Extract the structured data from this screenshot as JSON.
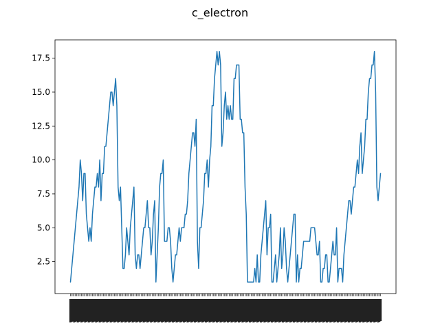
{
  "chart_data": {
    "type": "line",
    "title": "c_electron",
    "xlabel": "",
    "ylabel": "",
    "ylim": [
      0.15,
      18.85
    ],
    "yticks": [
      "2.5",
      "5.0",
      "7.5",
      "10.0",
      "12.5",
      "15.0",
      "17.5"
    ],
    "grid": false,
    "legend": "none",
    "line_color": "#1f77b4",
    "series": [
      {
        "values": [
          1,
          2,
          3,
          4,
          5,
          6,
          7,
          8,
          10,
          9,
          7,
          9,
          9,
          6,
          5,
          4,
          5,
          4,
          6,
          7,
          8,
          8,
          9,
          8,
          10,
          7,
          9,
          9,
          11,
          11,
          12,
          13,
          14,
          15,
          15,
          14,
          15,
          16,
          14,
          8,
          7,
          8,
          5,
          2,
          2,
          3,
          5,
          4,
          3,
          5,
          6,
          7,
          8,
          3,
          2,
          3,
          3,
          2,
          3,
          4,
          5,
          5,
          6,
          7,
          5,
          5,
          3,
          4,
          6,
          7,
          1,
          3,
          5,
          8,
          9,
          9,
          10,
          4,
          4,
          4,
          5,
          5,
          4,
          2,
          1,
          2,
          3,
          3,
          4,
          5,
          4,
          5,
          5,
          5,
          6,
          6,
          7,
          9,
          10,
          11,
          12,
          12,
          11,
          13,
          4,
          2,
          5,
          5,
          6,
          7,
          9,
          9,
          10,
          8,
          10,
          11,
          14,
          14,
          16,
          17,
          18,
          17,
          18,
          17,
          11,
          12,
          14,
          15,
          13,
          14,
          13,
          14,
          13,
          13,
          16,
          16,
          17,
          17,
          17,
          13,
          13,
          12,
          12,
          8,
          6,
          1,
          1,
          1,
          1,
          1,
          1,
          2,
          1,
          3,
          1,
          1,
          3,
          4,
          5,
          6,
          7,
          3,
          5,
          5,
          6,
          1,
          1,
          2,
          3,
          1,
          2,
          3,
          5,
          2,
          3,
          5,
          4,
          2,
          1,
          2,
          3,
          4,
          5,
          6,
          6,
          1,
          3,
          1,
          2,
          2,
          3,
          4,
          4,
          4,
          4,
          4,
          4,
          5,
          5,
          5,
          5,
          4,
          3,
          3,
          4,
          1,
          1,
          2,
          2,
          3,
          3,
          1,
          1,
          2,
          3,
          4,
          3,
          3,
          5,
          1,
          2,
          2,
          2,
          1,
          3,
          4,
          5,
          6,
          7,
          7,
          6,
          7,
          8,
          8,
          9,
          10,
          9,
          11,
          12,
          9,
          10,
          11,
          13,
          13,
          15,
          16,
          16,
          17,
          17,
          18,
          15,
          8,
          7,
          8,
          9
        ]
      }
    ]
  }
}
